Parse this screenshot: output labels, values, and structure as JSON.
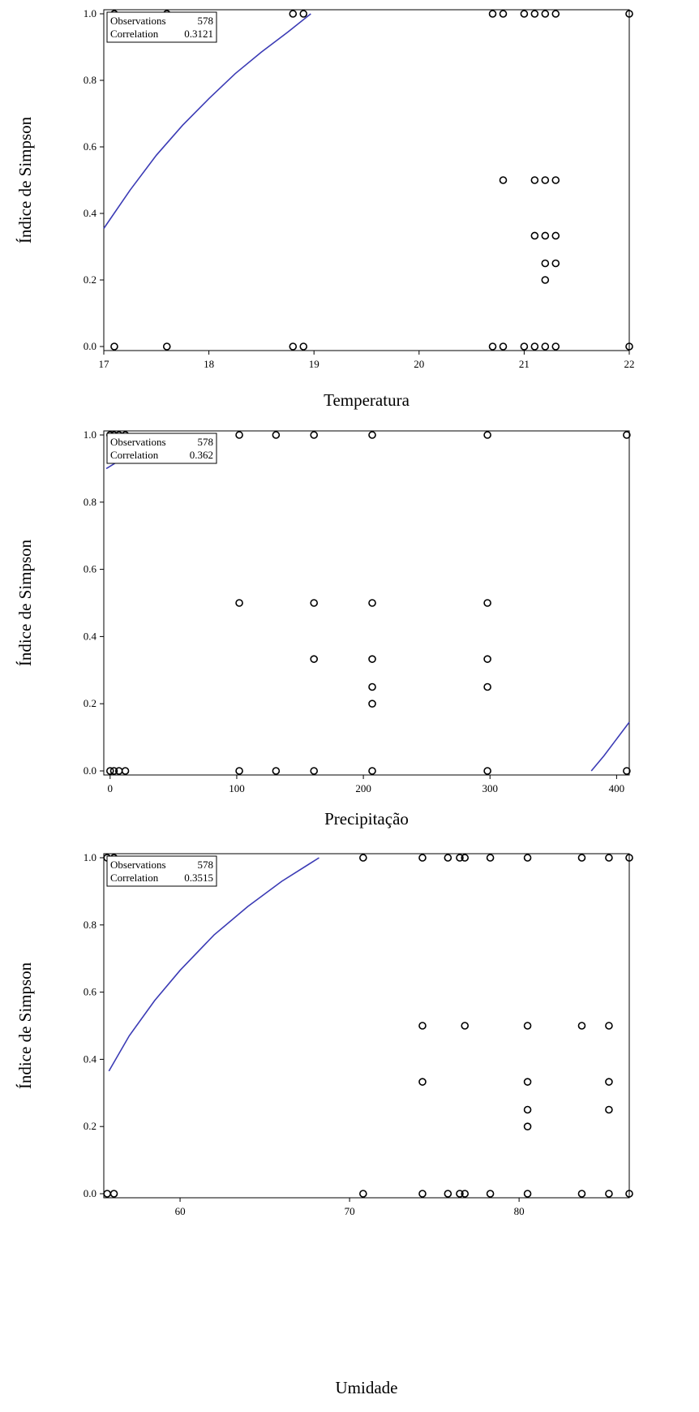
{
  "chart_data": [
    {
      "type": "scatter",
      "xlabel": "Temperatura",
      "ylabel": "Índice de Simpson",
      "xlim": [
        17,
        22
      ],
      "ylim": [
        0,
        1
      ],
      "xticks": [
        "17",
        "18",
        "19",
        "20",
        "21",
        "22"
      ],
      "yticks": [
        "0.0",
        "0.2",
        "0.4",
        "0.6",
        "0.8",
        "1.0"
      ],
      "stats": {
        "observations_label": "Observations",
        "observations": "578",
        "correlation_label": "Correlation",
        "correlation": "0.3121"
      },
      "points": [
        [
          17.1,
          1.0
        ],
        [
          17.6,
          1.0
        ],
        [
          18.8,
          1.0
        ],
        [
          18.9,
          1.0
        ],
        [
          20.7,
          1.0
        ],
        [
          20.8,
          1.0
        ],
        [
          21.0,
          1.0
        ],
        [
          21.1,
          1.0
        ],
        [
          21.2,
          1.0
        ],
        [
          21.3,
          1.0
        ],
        [
          22.0,
          1.0
        ],
        [
          20.8,
          0.5
        ],
        [
          21.1,
          0.5
        ],
        [
          21.2,
          0.5
        ],
        [
          21.3,
          0.5
        ],
        [
          21.1,
          0.333
        ],
        [
          21.2,
          0.333
        ],
        [
          21.3,
          0.333
        ],
        [
          21.2,
          0.25
        ],
        [
          21.3,
          0.25
        ],
        [
          21.2,
          0.2
        ],
        [
          17.1,
          0.0
        ],
        [
          17.6,
          0.0
        ],
        [
          18.8,
          0.0
        ],
        [
          18.9,
          0.0
        ],
        [
          20.7,
          0.0
        ],
        [
          20.8,
          0.0
        ],
        [
          21.0,
          0.0
        ],
        [
          21.1,
          0.0
        ],
        [
          21.2,
          0.0
        ],
        [
          21.3,
          0.0
        ],
        [
          22.0,
          0.0
        ]
      ],
      "fit_curves": [
        [
          [
            17.0,
            0.355
          ],
          [
            17.25,
            0.47
          ],
          [
            17.5,
            0.575
          ],
          [
            17.75,
            0.665
          ],
          [
            18.0,
            0.745
          ],
          [
            18.25,
            0.82
          ],
          [
            18.5,
            0.885
          ],
          [
            18.75,
            0.945
          ],
          [
            18.97,
            1.0
          ]
        ]
      ],
      "fit_color": "#3b3bb5"
    },
    {
      "type": "scatter",
      "xlabel": "Precipitação",
      "ylabel": "Índice de Simpson",
      "xlim": [
        -5,
        410
      ],
      "ylim": [
        0,
        1
      ],
      "xticks": [
        "0",
        "100",
        "200",
        "300",
        "400"
      ],
      "xtick_values": [
        0,
        100,
        200,
        300,
        400
      ],
      "yticks": [
        "0.0",
        "0.2",
        "0.4",
        "0.6",
        "0.8",
        "1.0"
      ],
      "stats": {
        "observations_label": "Observations",
        "observations": "578",
        "correlation_label": "Correlation",
        "correlation": "0.362"
      },
      "points": [
        [
          0,
          1.0
        ],
        [
          3,
          1.0
        ],
        [
          7,
          1.0
        ],
        [
          12,
          1.0
        ],
        [
          102,
          1.0
        ],
        [
          131,
          1.0
        ],
        [
          161,
          1.0
        ],
        [
          207,
          1.0
        ],
        [
          298,
          1.0
        ],
        [
          408,
          1.0
        ],
        [
          102,
          0.5
        ],
        [
          161,
          0.5
        ],
        [
          207,
          0.5
        ],
        [
          298,
          0.5
        ],
        [
          161,
          0.333
        ],
        [
          207,
          0.333
        ],
        [
          298,
          0.333
        ],
        [
          207,
          0.25
        ],
        [
          298,
          0.25
        ],
        [
          207,
          0.2
        ],
        [
          0,
          0.0
        ],
        [
          3,
          0.0
        ],
        [
          7,
          0.0
        ],
        [
          12,
          0.0
        ],
        [
          102,
          0.0
        ],
        [
          131,
          0.0
        ],
        [
          161,
          0.0
        ],
        [
          207,
          0.0
        ],
        [
          298,
          0.0
        ],
        [
          408,
          0.0
        ]
      ],
      "fit_curves": [
        [
          [
            -3,
            0.9
          ],
          [
            10,
            0.93
          ],
          [
            25,
            0.97
          ],
          [
            40,
            1.0
          ]
        ],
        [
          [
            380,
            0.0
          ],
          [
            390,
            0.045
          ],
          [
            400,
            0.095
          ],
          [
            410,
            0.145
          ]
        ]
      ],
      "fit_color": "#3b3bb5"
    },
    {
      "type": "scatter",
      "xlabel": "Umidade",
      "ylabel": "Índice de Simpson",
      "xlim": [
        55.5,
        86.5
      ],
      "ylim": [
        0,
        1
      ],
      "xticks": [
        "60",
        "70",
        "80"
      ],
      "xtick_values": [
        60,
        70,
        80
      ],
      "yticks": [
        "0.0",
        "0.2",
        "0.4",
        "0.6",
        "0.8",
        "1.0"
      ],
      "stats": {
        "observations_label": "Observations",
        "observations": "578",
        "correlation_label": "Correlation",
        "correlation": "0.3515"
      },
      "points": [
        [
          55.7,
          1.0
        ],
        [
          56.1,
          1.0
        ],
        [
          70.8,
          1.0
        ],
        [
          74.3,
          1.0
        ],
        [
          75.8,
          1.0
        ],
        [
          76.5,
          1.0
        ],
        [
          76.8,
          1.0
        ],
        [
          78.3,
          1.0
        ],
        [
          80.5,
          1.0
        ],
        [
          83.7,
          1.0
        ],
        [
          85.3,
          1.0
        ],
        [
          86.5,
          1.0
        ],
        [
          74.3,
          0.5
        ],
        [
          76.8,
          0.5
        ],
        [
          80.5,
          0.5
        ],
        [
          83.7,
          0.5
        ],
        [
          85.3,
          0.5
        ],
        [
          74.3,
          0.333
        ],
        [
          80.5,
          0.333
        ],
        [
          85.3,
          0.333
        ],
        [
          80.5,
          0.25
        ],
        [
          85.3,
          0.25
        ],
        [
          80.5,
          0.2
        ],
        [
          55.7,
          0.0
        ],
        [
          56.1,
          0.0
        ],
        [
          70.8,
          0.0
        ],
        [
          74.3,
          0.0
        ],
        [
          75.8,
          0.0
        ],
        [
          76.5,
          0.0
        ],
        [
          76.8,
          0.0
        ],
        [
          78.3,
          0.0
        ],
        [
          80.5,
          0.0
        ],
        [
          83.7,
          0.0
        ],
        [
          85.3,
          0.0
        ],
        [
          86.5,
          0.0
        ]
      ],
      "fit_curves": [
        [
          [
            55.8,
            0.365
          ],
          [
            57,
            0.47
          ],
          [
            58.5,
            0.575
          ],
          [
            60,
            0.665
          ],
          [
            62,
            0.77
          ],
          [
            64,
            0.855
          ],
          [
            66,
            0.93
          ],
          [
            68.2,
            1.0
          ]
        ]
      ],
      "fit_color": "#3b3bb5"
    }
  ]
}
